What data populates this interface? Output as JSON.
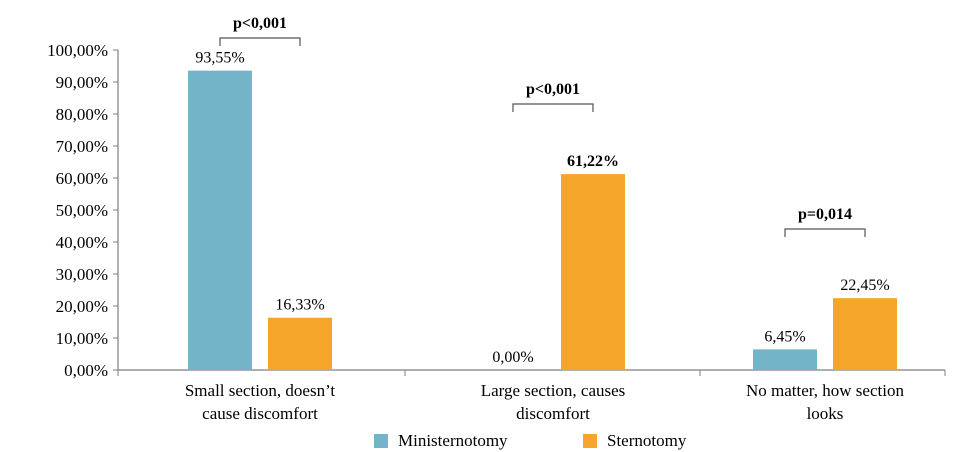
{
  "chart_data": {
    "type": "bar",
    "title": "",
    "xlabel": "",
    "ylabel": "",
    "ylim": [
      0,
      100
    ],
    "yticks": [
      "0,00%",
      "10,00%",
      "20,00%",
      "30,00%",
      "40,00%",
      "50,00%",
      "60,00%",
      "70,00%",
      "80,00%",
      "90,00%",
      "100,00%"
    ],
    "categories": [
      [
        "Small section, doesn’t",
        "cause discomfort"
      ],
      [
        "Large section, causes",
        "discomfort"
      ],
      [
        "No matter, how section",
        "looks"
      ]
    ],
    "series": [
      {
        "name": "Ministernotomy",
        "color": "#74b4c8",
        "values": [
          93.55,
          0.0,
          6.45
        ],
        "labels": [
          "93,55%",
          "0,00%",
          "6,45%"
        ],
        "bold": [
          false,
          false,
          false
        ]
      },
      {
        "name": "Sternotomy",
        "color": "#f4a52a",
        "values": [
          16.33,
          61.22,
          22.45
        ],
        "labels": [
          "16,33%",
          "61,22%",
          "22,45%"
        ],
        "bold": [
          false,
          true,
          false
        ]
      }
    ],
    "annotations": [
      "p<0,001",
      "p<0,001",
      "p=0,014"
    ],
    "grid": false,
    "legend": "bottom"
  }
}
